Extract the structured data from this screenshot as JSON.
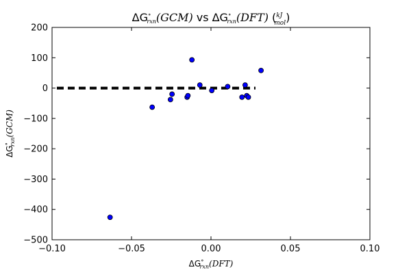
{
  "chart_data": {
    "type": "scatter",
    "title": {
      "delta": "ΔG",
      "sup": "∘",
      "sub": "rxn",
      "gcm": "(GCM)",
      "vs": "vs",
      "dft": "(DFT)",
      "unit_num": "kJ",
      "unit_den": "mol"
    },
    "xlabel": {
      "delta": "ΔG",
      "sup": "∘",
      "sub": "rxn",
      "rest": "(DFT)"
    },
    "ylabel": {
      "delta": "ΔG",
      "sup": "∘",
      "sub": "rxn",
      "rest": "(GCM)"
    },
    "xlim": [
      -0.1,
      0.1
    ],
    "ylim": [
      -500,
      200
    ],
    "xticks": [
      -0.1,
      -0.05,
      0.0,
      0.05,
      0.1
    ],
    "xtick_labels": [
      "−0.10",
      "−0.05",
      "0.00",
      "0.05",
      "0.10"
    ],
    "yticks": [
      -500,
      -400,
      -300,
      -200,
      -100,
      0,
      100,
      200
    ],
    "ytick_labels": [
      "−500",
      "−400",
      "−300",
      "−200",
      "−100",
      "0",
      "100",
      "200"
    ],
    "grid": false,
    "points": [
      {
        "x": -0.0635,
        "y": -426
      },
      {
        "x": -0.037,
        "y": -63
      },
      {
        "x": -0.0255,
        "y": -38
      },
      {
        "x": -0.0245,
        "y": -20
      },
      {
        "x": -0.015,
        "y": -30
      },
      {
        "x": -0.0145,
        "y": -25
      },
      {
        "x": -0.012,
        "y": 93
      },
      {
        "x": -0.007,
        "y": 10
      },
      {
        "x": 0.0005,
        "y": -8
      },
      {
        "x": 0.0105,
        "y": 5
      },
      {
        "x": 0.0195,
        "y": -30
      },
      {
        "x": 0.0215,
        "y": 10
      },
      {
        "x": 0.0225,
        "y": -25
      },
      {
        "x": 0.0235,
        "y": -30
      },
      {
        "x": 0.0315,
        "y": 58
      }
    ],
    "reference_line": {
      "x": [
        -0.097,
        0.028
      ],
      "y": [
        0,
        0
      ],
      "style": "dashed"
    },
    "colors": {
      "marker": "#0000ff",
      "marker_edge": "#000000",
      "line": "#000000"
    }
  }
}
